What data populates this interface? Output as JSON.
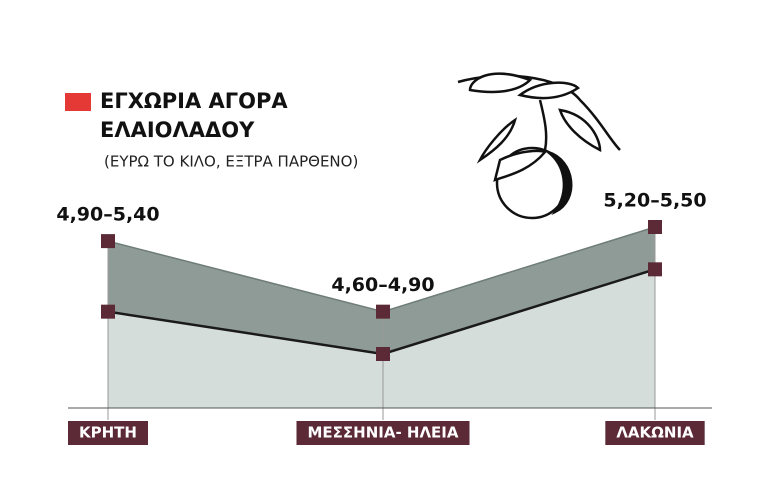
{
  "chart_data": {
    "type": "range-area",
    "title": [
      "ΕΓΧΩΡΙΑ ΑΓΟΡΑ",
      "ΕΛΑΙΟΛΑΔΟΥ"
    ],
    "subtitle": "(ΕΥΡΩ ΤΟ ΚΙΛΟ, ΕΞΤΡΑ ΠΑΡΘΕΝΟ)",
    "categories": [
      "ΚΡΗΤΗ",
      "ΜΕΣΣΗΝΙΑ- ΗΛΕΙΑ",
      "ΛΑΚΩΝΙΑ"
    ],
    "low": [
      4.9,
      4.6,
      5.2
    ],
    "high": [
      5.4,
      4.9,
      5.5
    ],
    "value_labels": [
      "4,90–5,40",
      "4,60–4,90",
      "5,20–5,50"
    ],
    "color": "#e53935"
  }
}
